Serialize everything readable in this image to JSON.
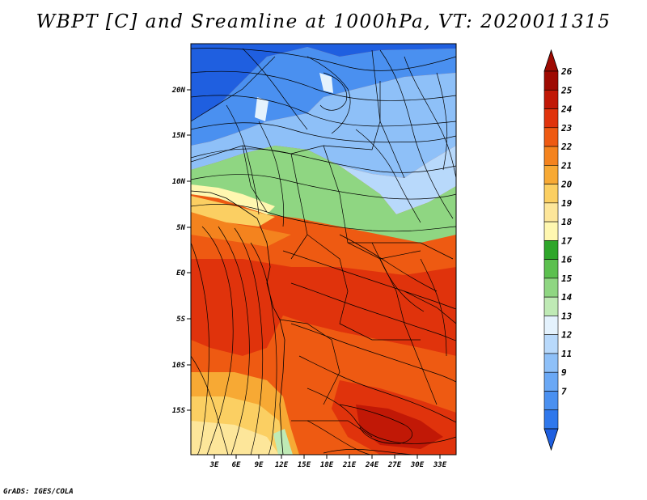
{
  "title": "WBPT [C] and Sreamline at 1000hPa, VT: 2020011315",
  "footer": "GrADS: IGES/COLA",
  "colors": {
    "frame": "#000000",
    "water": "#ffffff",
    "shades": [
      "#1f5fe0",
      "#2f78ec",
      "#4a90f0",
      "#6aa8f5",
      "#8ec0f8",
      "#b8d9fb",
      "#e4f2fd",
      "#bfeab5",
      "#8fd682",
      "#5cc04f",
      "#2ea62a",
      "#fff7b0",
      "#fde69a",
      "#fbcf62",
      "#f7a934",
      "#f4831e",
      "#ee5a12",
      "#e0330c",
      "#c11806",
      "#9e0a02"
    ]
  },
  "map": {
    "lat_labels": [
      "20N",
      "15N",
      "10N",
      "5N",
      "EQ",
      "5S",
      "10S",
      "15S"
    ],
    "lon_labels": [
      "3E",
      "6E",
      "9E",
      "12E",
      "15E",
      "18E",
      "21E",
      "24E",
      "27E",
      "30E",
      "33E"
    ]
  },
  "legend": {
    "labels": [
      "26",
      "25",
      "24",
      "23",
      "22",
      "21",
      "20",
      "19",
      "18",
      "17",
      "16",
      "15",
      "14",
      "13",
      "12",
      "11",
      "9",
      "7"
    ],
    "colors": [
      "#9e0a02",
      "#c11806",
      "#e0330c",
      "#ee5a12",
      "#f4831e",
      "#f7a934",
      "#fbcf62",
      "#fde69a",
      "#fff7b0",
      "#2ea62a",
      "#5cc04f",
      "#8fd682",
      "#bfeab5",
      "#e4f2fd",
      "#b8d9fb",
      "#8ec0f8",
      "#6aa8f5",
      "#4a90f0",
      "#2f78ec"
    ]
  }
}
